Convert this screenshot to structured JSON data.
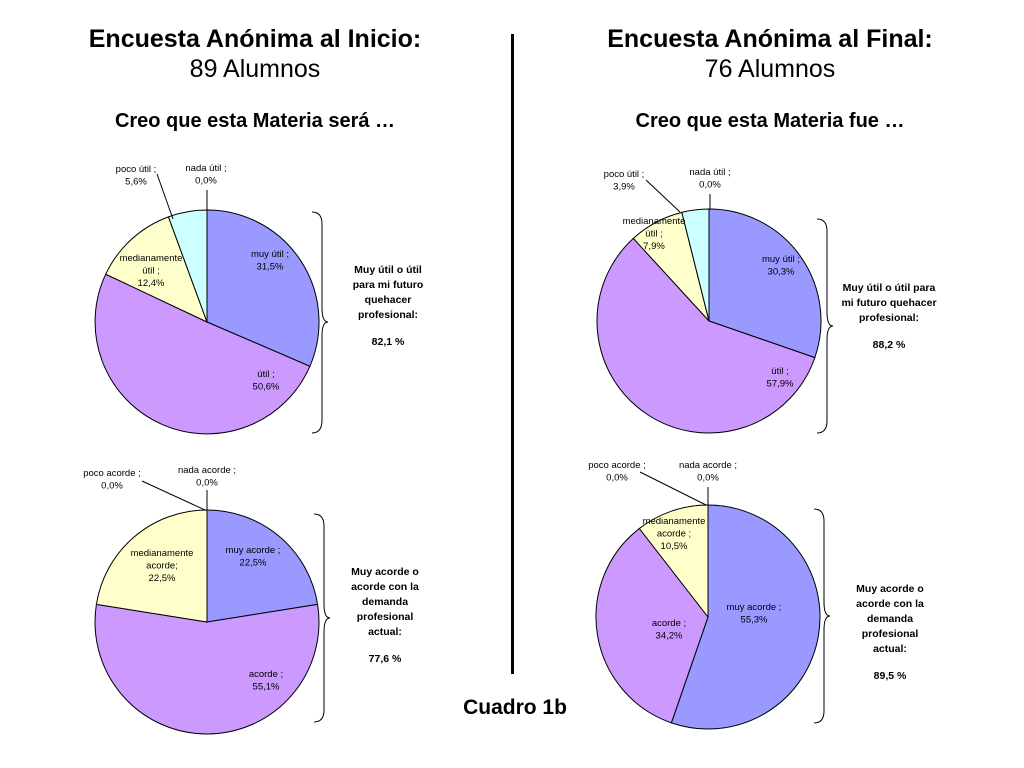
{
  "header": {
    "left": {
      "title": "Encuesta Anónima al Inicio:",
      "count": "89 Alumnos",
      "question": "Creo que esta Materia será …"
    },
    "right": {
      "title": "Encuesta Anónima al Final:",
      "count": "76 Alumnos",
      "question": "Creo que esta Materia fue …"
    }
  },
  "footer": {
    "label": "Cuadro 1b"
  },
  "summaries": {
    "top_left": {
      "text": "Muy útil o útil para mi futuro quehacer profesional:",
      "value": "82,1 %"
    },
    "top_right": {
      "text": "Muy útil o útil para mi futuro quehacer profesional:",
      "value": "88,2 %"
    },
    "bottom_left": {
      "text": "Muy acorde o acorde con la demanda profesional actual:",
      "value": "77,6 %"
    },
    "bottom_right": {
      "text": "Muy acorde o acorde con la demanda profesional actual:",
      "value": "89,5 %"
    }
  },
  "colors": {
    "muy": "#9999ff",
    "util": "#cc99ff",
    "mediana": "#ffffcc",
    "poco": "#ccffff",
    "nada": "#ffffff"
  },
  "chart_data": [
    {
      "type": "pie",
      "title": "",
      "slices": [
        {
          "label": "muy útil ;",
          "value_label": "31,5%",
          "value": 31.5,
          "color": "#9999ff"
        },
        {
          "label": "útil ;",
          "value_label": "50,6%",
          "value": 50.6,
          "color": "#cc99ff"
        },
        {
          "label": "medianamente útil ;",
          "value_label": "12,4%",
          "value": 12.4,
          "color": "#ffffcc"
        },
        {
          "label": "poco útil ;",
          "value_label": "5,6%",
          "value": 5.6,
          "color": "#ccffff"
        },
        {
          "label": "nada útil ;",
          "value_label": "0,0%",
          "value": 0.0,
          "color": "#ffffff"
        }
      ]
    },
    {
      "type": "pie",
      "title": "",
      "slices": [
        {
          "label": "muy útil ;",
          "value_label": "30,3%",
          "value": 30.3,
          "color": "#9999ff"
        },
        {
          "label": "útil ;",
          "value_label": "57,9%",
          "value": 57.9,
          "color": "#cc99ff"
        },
        {
          "label": "medianamente útil ;",
          "value_label": "7,9%",
          "value": 7.9,
          "color": "#ffffcc"
        },
        {
          "label": "poco útil ;",
          "value_label": "3,9%",
          "value": 3.9,
          "color": "#ccffff"
        },
        {
          "label": "nada útil ;",
          "value_label": "0,0%",
          "value": 0.0,
          "color": "#ffffff"
        }
      ]
    },
    {
      "type": "pie",
      "title": "",
      "slices": [
        {
          "label": "muy acorde ;",
          "value_label": "22,5%",
          "value": 22.5,
          "color": "#9999ff"
        },
        {
          "label": "acorde ;",
          "value_label": "55,1%",
          "value": 55.1,
          "color": "#cc99ff"
        },
        {
          "label": "medianamente acorde;",
          "value_label": "22,5%",
          "value": 22.5,
          "color": "#ffffcc"
        },
        {
          "label": "poco acorde ;",
          "value_label": "0,0%",
          "value": 0.0,
          "color": "#ccffff"
        },
        {
          "label": "nada acorde ;",
          "value_label": "0,0%",
          "value": 0.0,
          "color": "#ffffff"
        }
      ]
    },
    {
      "type": "pie",
      "title": "",
      "slices": [
        {
          "label": "muy acorde ;",
          "value_label": "55,3%",
          "value": 55.3,
          "color": "#9999ff"
        },
        {
          "label": "acorde ;",
          "value_label": "34,2%",
          "value": 34.2,
          "color": "#cc99ff"
        },
        {
          "label": "medianamente acorde ;",
          "value_label": "10,5%",
          "value": 10.5,
          "color": "#ffffcc"
        },
        {
          "label": "poco acorde ;",
          "value_label": "0,0%",
          "value": 0.0,
          "color": "#ccffff"
        },
        {
          "label": "nada acorde ;",
          "value_label": "0,0%",
          "value": 0.0,
          "color": "#ffffff"
        }
      ]
    }
  ]
}
